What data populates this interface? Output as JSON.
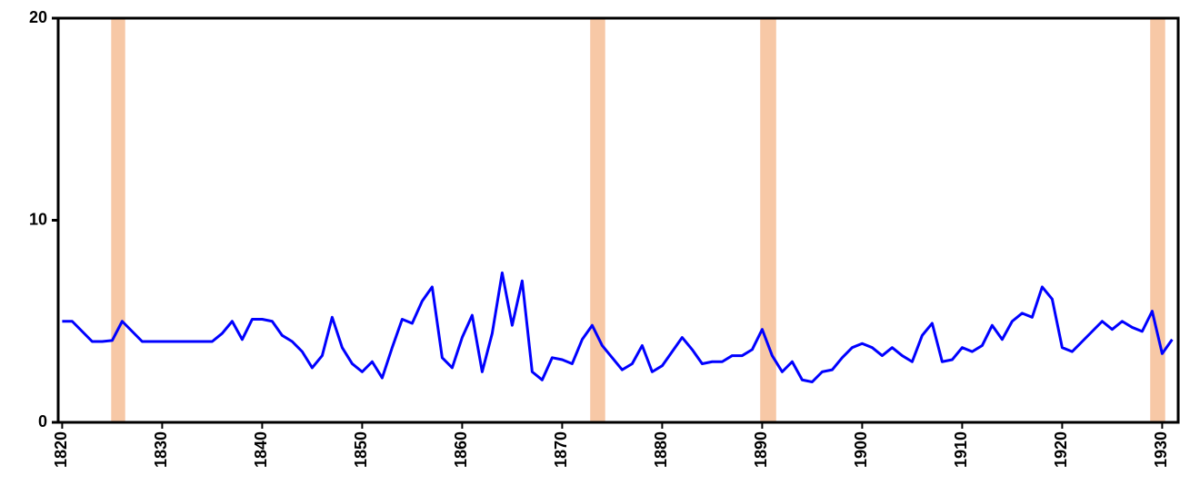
{
  "chart_data": {
    "type": "line",
    "x": [
      1820,
      1821,
      1822,
      1823,
      1824,
      1825,
      1826,
      1827,
      1828,
      1829,
      1830,
      1831,
      1832,
      1833,
      1834,
      1835,
      1836,
      1837,
      1838,
      1839,
      1840,
      1841,
      1842,
      1843,
      1844,
      1845,
      1846,
      1847,
      1848,
      1849,
      1850,
      1851,
      1852,
      1853,
      1854,
      1855,
      1856,
      1857,
      1858,
      1859,
      1860,
      1861,
      1862,
      1863,
      1864,
      1865,
      1866,
      1867,
      1868,
      1869,
      1870,
      1871,
      1872,
      1873,
      1874,
      1875,
      1876,
      1877,
      1878,
      1879,
      1880,
      1881,
      1882,
      1883,
      1884,
      1885,
      1886,
      1887,
      1888,
      1889,
      1890,
      1891,
      1892,
      1893,
      1894,
      1895,
      1896,
      1897,
      1898,
      1899,
      1900,
      1901,
      1902,
      1903,
      1904,
      1905,
      1906,
      1907,
      1908,
      1909,
      1910,
      1911,
      1912,
      1913,
      1914,
      1915,
      1916,
      1917,
      1918,
      1919,
      1920,
      1921,
      1922,
      1923,
      1924,
      1925,
      1926,
      1927,
      1928,
      1929,
      1930,
      1931
    ],
    "series": [
      {
        "color": "#0000ff",
        "values": [
          5.0,
          5.0,
          4.5,
          4.0,
          4.0,
          4.05,
          5.0,
          4.5,
          4.0,
          4.0,
          4.0,
          4.0,
          4.0,
          4.0,
          4.0,
          4.0,
          4.4,
          5.0,
          4.1,
          5.1,
          5.1,
          5.0,
          4.3,
          4.0,
          3.5,
          2.7,
          3.3,
          5.2,
          3.7,
          2.9,
          2.5,
          3.0,
          2.2,
          3.7,
          5.1,
          4.9,
          6.0,
          6.7,
          3.2,
          2.7,
          4.2,
          5.3,
          2.5,
          4.4,
          7.4,
          4.8,
          7.0,
          2.5,
          2.1,
          3.2,
          3.1,
          2.9,
          4.1,
          4.8,
          3.8,
          3.2,
          2.6,
          2.9,
          3.8,
          2.5,
          2.8,
          3.5,
          4.2,
          3.6,
          2.9,
          3.0,
          3.0,
          3.3,
          3.3,
          3.6,
          4.6,
          3.3,
          2.5,
          3.0,
          2.1,
          2.0,
          2.5,
          2.6,
          3.2,
          3.7,
          3.9,
          3.7,
          3.3,
          3.7,
          3.3,
          3.0,
          4.3,
          4.9,
          3.0,
          3.1,
          3.7,
          3.5,
          3.8,
          4.8,
          4.1,
          5.0,
          5.4,
          5.2,
          6.7,
          6.1,
          3.7,
          3.5,
          4.0,
          4.5,
          5.0,
          4.6,
          5.0,
          4.7,
          4.5,
          5.5,
          3.4,
          4.1
        ]
      }
    ],
    "shaded_periods": [
      [
        1824.9,
        1826.3
      ],
      [
        1872.8,
        1874.3
      ],
      [
        1889.8,
        1891.4
      ],
      [
        1928.8,
        1930.3
      ]
    ],
    "shade_color": "#f7c8a6",
    "xlim": [
      1819.6,
      1931.6
    ],
    "xticks": [
      1820,
      1830,
      1840,
      1850,
      1860,
      1870,
      1880,
      1890,
      1900,
      1910,
      1920,
      1930
    ],
    "ylim": [
      0,
      20
    ],
    "yticks": [
      0,
      10,
      20
    ]
  }
}
